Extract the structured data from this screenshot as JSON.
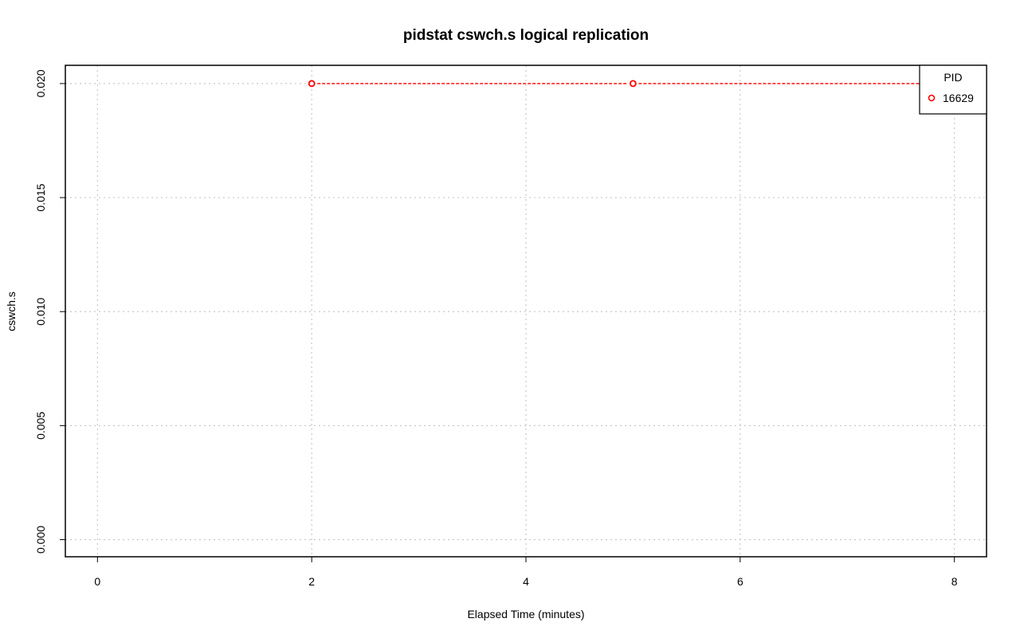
{
  "chart_data": {
    "type": "line",
    "title": "pidstat cswch.s logical replication",
    "xlabel": "Elapsed Time (minutes)",
    "ylabel": "cswch.s",
    "xlim": [
      -0.3,
      8.3
    ],
    "ylim": [
      -0.00075,
      0.0208
    ],
    "x_ticks": [
      0,
      2,
      4,
      6,
      8
    ],
    "x_tick_labels": [
      "0",
      "2",
      "4",
      "6",
      "8"
    ],
    "y_ticks": [
      0.0,
      0.005,
      0.01,
      0.015,
      0.02
    ],
    "y_tick_labels": [
      "0.000",
      "0.005",
      "0.010",
      "0.015",
      "0.020"
    ],
    "grid": true,
    "legend": {
      "title": "PID",
      "position": "top-right"
    },
    "series": [
      {
        "name": "16629",
        "color": "#ff0000",
        "marker": "open-circle",
        "line_style": "dashed",
        "x": [
          2,
          5,
          8
        ],
        "y": [
          0.02,
          0.02,
          0.02
        ]
      }
    ]
  }
}
